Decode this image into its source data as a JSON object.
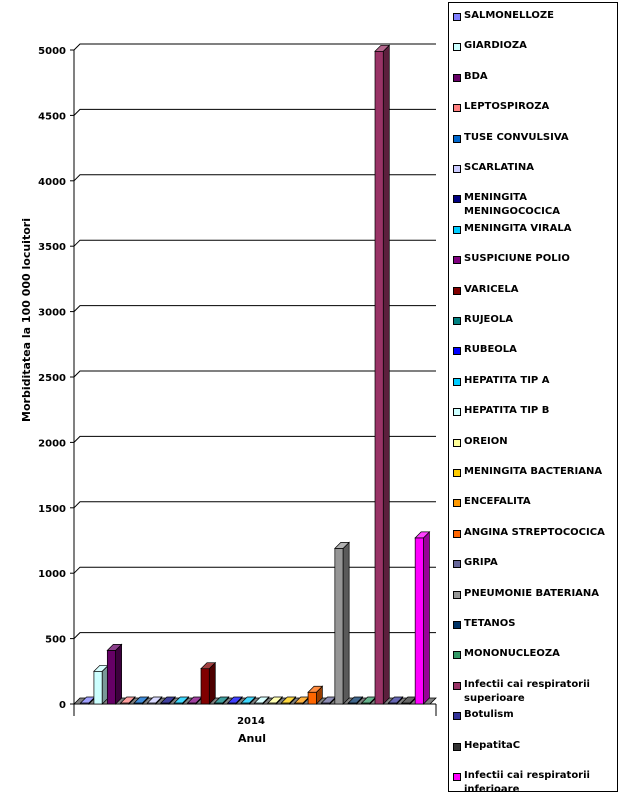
{
  "chart_data": {
    "type": "bar",
    "categories": [
      "2014"
    ],
    "xlabel": "Anul",
    "ylabel": "Morbiditatea la 100 000 locuitori",
    "ylim": [
      0,
      5000
    ],
    "yticks": [
      0,
      500,
      1000,
      1500,
      2000,
      2500,
      3000,
      3500,
      4000,
      4500,
      5000
    ],
    "grid": true,
    "legend_position": "right",
    "series": [
      {
        "name": "SALMONELLOZE",
        "values": [
          2
        ],
        "color": "#8080FF"
      },
      {
        "name": "GIARDIOZA",
        "values": [
          250
        ],
        "color": "#CCFFFF"
      },
      {
        "name": "BDA",
        "values": [
          410
        ],
        "color": "#660066"
      },
      {
        "name": "LEPTOSPIROZA",
        "values": [
          1
        ],
        "color": "#FF8080"
      },
      {
        "name": "TUSE CONVULSIVA",
        "values": [
          1
        ],
        "color": "#0066CC"
      },
      {
        "name": "SCARLATINA",
        "values": [
          2
        ],
        "color": "#CCCCFF"
      },
      {
        "name": "MENINGITA MENINGOCOCICA",
        "values": [
          1
        ],
        "color": "#000080"
      },
      {
        "name": "MENINGITA VIRALA",
        "values": [
          1
        ],
        "color": "#00CCFF"
      },
      {
        "name": "SUSPICIUNE POLIO",
        "values": [
          0
        ],
        "color": "#800080"
      },
      {
        "name": "VARICELA",
        "values": [
          270
        ],
        "color": "#800000"
      },
      {
        "name": "RUJEOLA",
        "values": [
          1
        ],
        "color": "#008080"
      },
      {
        "name": "RUBEOLA",
        "values": [
          1
        ],
        "color": "#0000FF"
      },
      {
        "name": "HEPATITA TIP A",
        "values": [
          5
        ],
        "color": "#00CCFF"
      },
      {
        "name": "HEPATITA TIP B",
        "values": [
          2
        ],
        "color": "#CCFFFF"
      },
      {
        "name": "OREION",
        "values": [
          5
        ],
        "color": "#FFFF99"
      },
      {
        "name": "MENINGITA BACTERIANA",
        "values": [
          1
        ],
        "color": "#FFCC00"
      },
      {
        "name": "ENCEFALITA",
        "values": [
          1
        ],
        "color": "#FF9900"
      },
      {
        "name": "ANGINA STREPTOCOCICA",
        "values": [
          90
        ],
        "color": "#FF6600"
      },
      {
        "name": "GRIPA",
        "values": [
          5
        ],
        "color": "#666699"
      },
      {
        "name": "PNEUMONIE BATERIANA",
        "values": [
          1190
        ],
        "color": "#969696"
      },
      {
        "name": "TETANOS",
        "values": [
          0
        ],
        "color": "#003366"
      },
      {
        "name": "MONONUCLEOZA",
        "values": [
          1
        ],
        "color": "#339966"
      },
      {
        "name": "Infectii cai respiratorii superioare",
        "values": [
          4990
        ],
        "color": "#993366"
      },
      {
        "name": "Botulism",
        "values": [
          0
        ],
        "color": "#333399"
      },
      {
        "name": "HepatitaC",
        "values": [
          2
        ],
        "color": "#333333"
      },
      {
        "name": "Infectii cai respiratorii inferioare",
        "values": [
          1270
        ],
        "color": "#FF00FF"
      }
    ]
  }
}
